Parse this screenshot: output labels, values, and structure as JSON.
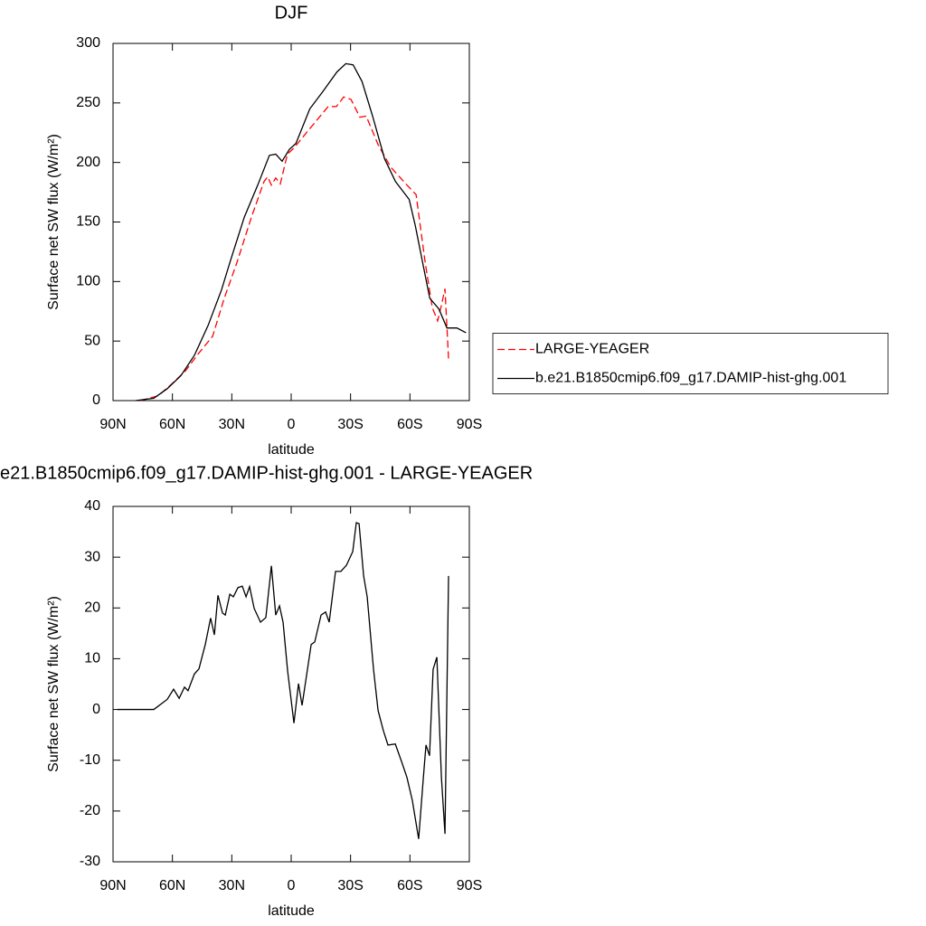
{
  "chart_data": [
    {
      "type": "line",
      "title": "DJF",
      "xlabel": "latitude",
      "ylabel": "Surface net SW flux (W/m²)",
      "xlim": [
        90,
        -90
      ],
      "xticks": [
        {
          "value": 90,
          "label": "90N"
        },
        {
          "value": 60,
          "label": "60N"
        },
        {
          "value": 30,
          "label": "30N"
        },
        0,
        {
          "value": -30,
          "label": "30S"
        },
        {
          "value": -60,
          "label": "60S"
        },
        {
          "value": -90,
          "label": "90S"
        }
      ],
      "ylim": [
        0,
        300
      ],
      "yticks": [
        0,
        50,
        100,
        150,
        200,
        250,
        300
      ],
      "legend": "right",
      "series": [
        {
          "name": "LARGE-YEAGER",
          "color": "#ff0000",
          "dash": "dashed",
          "x": [
            76.3,
            67.2,
            60.3,
            53.4,
            46.6,
            39.7,
            33.8,
            27.4,
            20.1,
            13.7,
            11.9,
            10,
            7.8,
            5.5,
            1.9,
            -1.3,
            -8.2,
            -13.7,
            -18.7,
            -22.9,
            -26.5,
            -30.2,
            -34.7,
            -37.9,
            -43.9,
            -50.3,
            -58.5,
            -63.1,
            -67.7,
            -71.3,
            -74,
            -75.9,
            -77.7,
            -79.5
          ],
          "values": [
            0,
            4,
            14,
            25,
            40,
            54,
            86,
            116,
            154,
            184,
            188,
            181,
            187,
            182,
            207,
            212,
            226,
            237,
            247,
            247,
            255,
            253,
            238,
            239,
            215,
            196,
            181,
            173,
            116,
            78,
            67,
            80,
            94,
            35
          ]
        },
        {
          "name": "b.e21.B1850cmip6.f09_g17.DAMIP-hist-ghg.001",
          "color": "#000000",
          "dash": "solid",
          "x": [
            78.6,
            69.4,
            62.6,
            55.7,
            48.9,
            42,
            35.2,
            30.6,
            23.7,
            16.9,
            11,
            7.8,
            4.6,
            0.9,
            -2.4,
            -9.4,
            -16.2,
            -23.1,
            -27.6,
            -31.3,
            -35.8,
            -41.3,
            -47.2,
            -52.7,
            -59.6,
            -62.7,
            -66.4,
            -70,
            -74.6,
            -78.7,
            -83.7,
            -88.3
          ],
          "values": [
            0,
            2,
            10,
            21,
            38,
            63,
            93,
            118,
            154,
            181,
            206,
            207,
            201,
            211,
            216,
            245,
            260,
            276,
            283,
            282,
            268,
            238,
            203,
            184,
            169,
            147,
            116,
            86,
            77,
            61,
            61,
            57
          ]
        }
      ]
    },
    {
      "type": "line",
      "title": "e21.B1850cmip6.f09_g17.DAMIP-hist-ghg.001 - LARGE-YEAGER",
      "xlabel": "latitude",
      "ylabel": "Surface net SW flux (W/m²)",
      "xlim": [
        90,
        -90
      ],
      "xticks": [
        {
          "value": 90,
          "label": "90N"
        },
        {
          "value": 60,
          "label": "60N"
        },
        {
          "value": 30,
          "label": "30N"
        },
        0,
        {
          "value": -30,
          "label": "30S"
        },
        {
          "value": -60,
          "label": "60S"
        },
        {
          "value": -90,
          "label": "90S"
        }
      ],
      "ylim": [
        -30,
        40
      ],
      "yticks": [
        -30,
        -20,
        -10,
        0,
        10,
        20,
        30,
        40
      ],
      "series": [
        {
          "color": "#000000",
          "dash": "solid",
          "x": [
            87.7,
            69.4,
            62.6,
            59.4,
            56.6,
            53.9,
            52.1,
            48.9,
            46.6,
            43.4,
            40.7,
            38.8,
            37,
            34.7,
            33.3,
            31,
            29.2,
            26.9,
            24.7,
            22.8,
            21,
            18.7,
            15.5,
            12.8,
            10,
            7.8,
            5.9,
            4.1,
            1.8,
            -1.4,
            -3.7,
            -5.5,
            -10.1,
            -11.9,
            -15.1,
            -17.4,
            -19.2,
            -22.4,
            -25.1,
            -27.9,
            -31.1,
            -32.9,
            -34.3,
            -36.6,
            -38.4,
            -41.6,
            -43.9,
            -46.6,
            -48.9,
            -52.6,
            -55.8,
            -58.5,
            -61.2,
            -64.4,
            -66.7,
            -68.1,
            -69.9,
            -71.7,
            -73.6,
            -75.9,
            -77.7,
            -79.5
          ],
          "values": [
            0,
            0,
            2,
            4,
            2.2,
            4.4,
            3.7,
            7,
            8,
            12.8,
            18,
            14.7,
            22.5,
            19,
            18.6,
            22.7,
            22.2,
            24,
            24.3,
            22.2,
            24.2,
            19.9,
            17.2,
            18.1,
            28.3,
            18.6,
            20.4,
            17.2,
            7.6,
            -2.7,
            5.1,
            0.8,
            12.8,
            13.3,
            18.6,
            19.2,
            17.2,
            27.2,
            27.2,
            28.4,
            31.1,
            36.8,
            36.6,
            26.3,
            22.2,
            7.9,
            -0.2,
            -4.2,
            -7,
            -6.8,
            -10.3,
            -13.4,
            -17.9,
            -25.5,
            -13.8,
            -7,
            -9.1,
            7.9,
            10.3,
            -13.4,
            -24.5,
            26.3
          ]
        }
      ]
    }
  ]
}
